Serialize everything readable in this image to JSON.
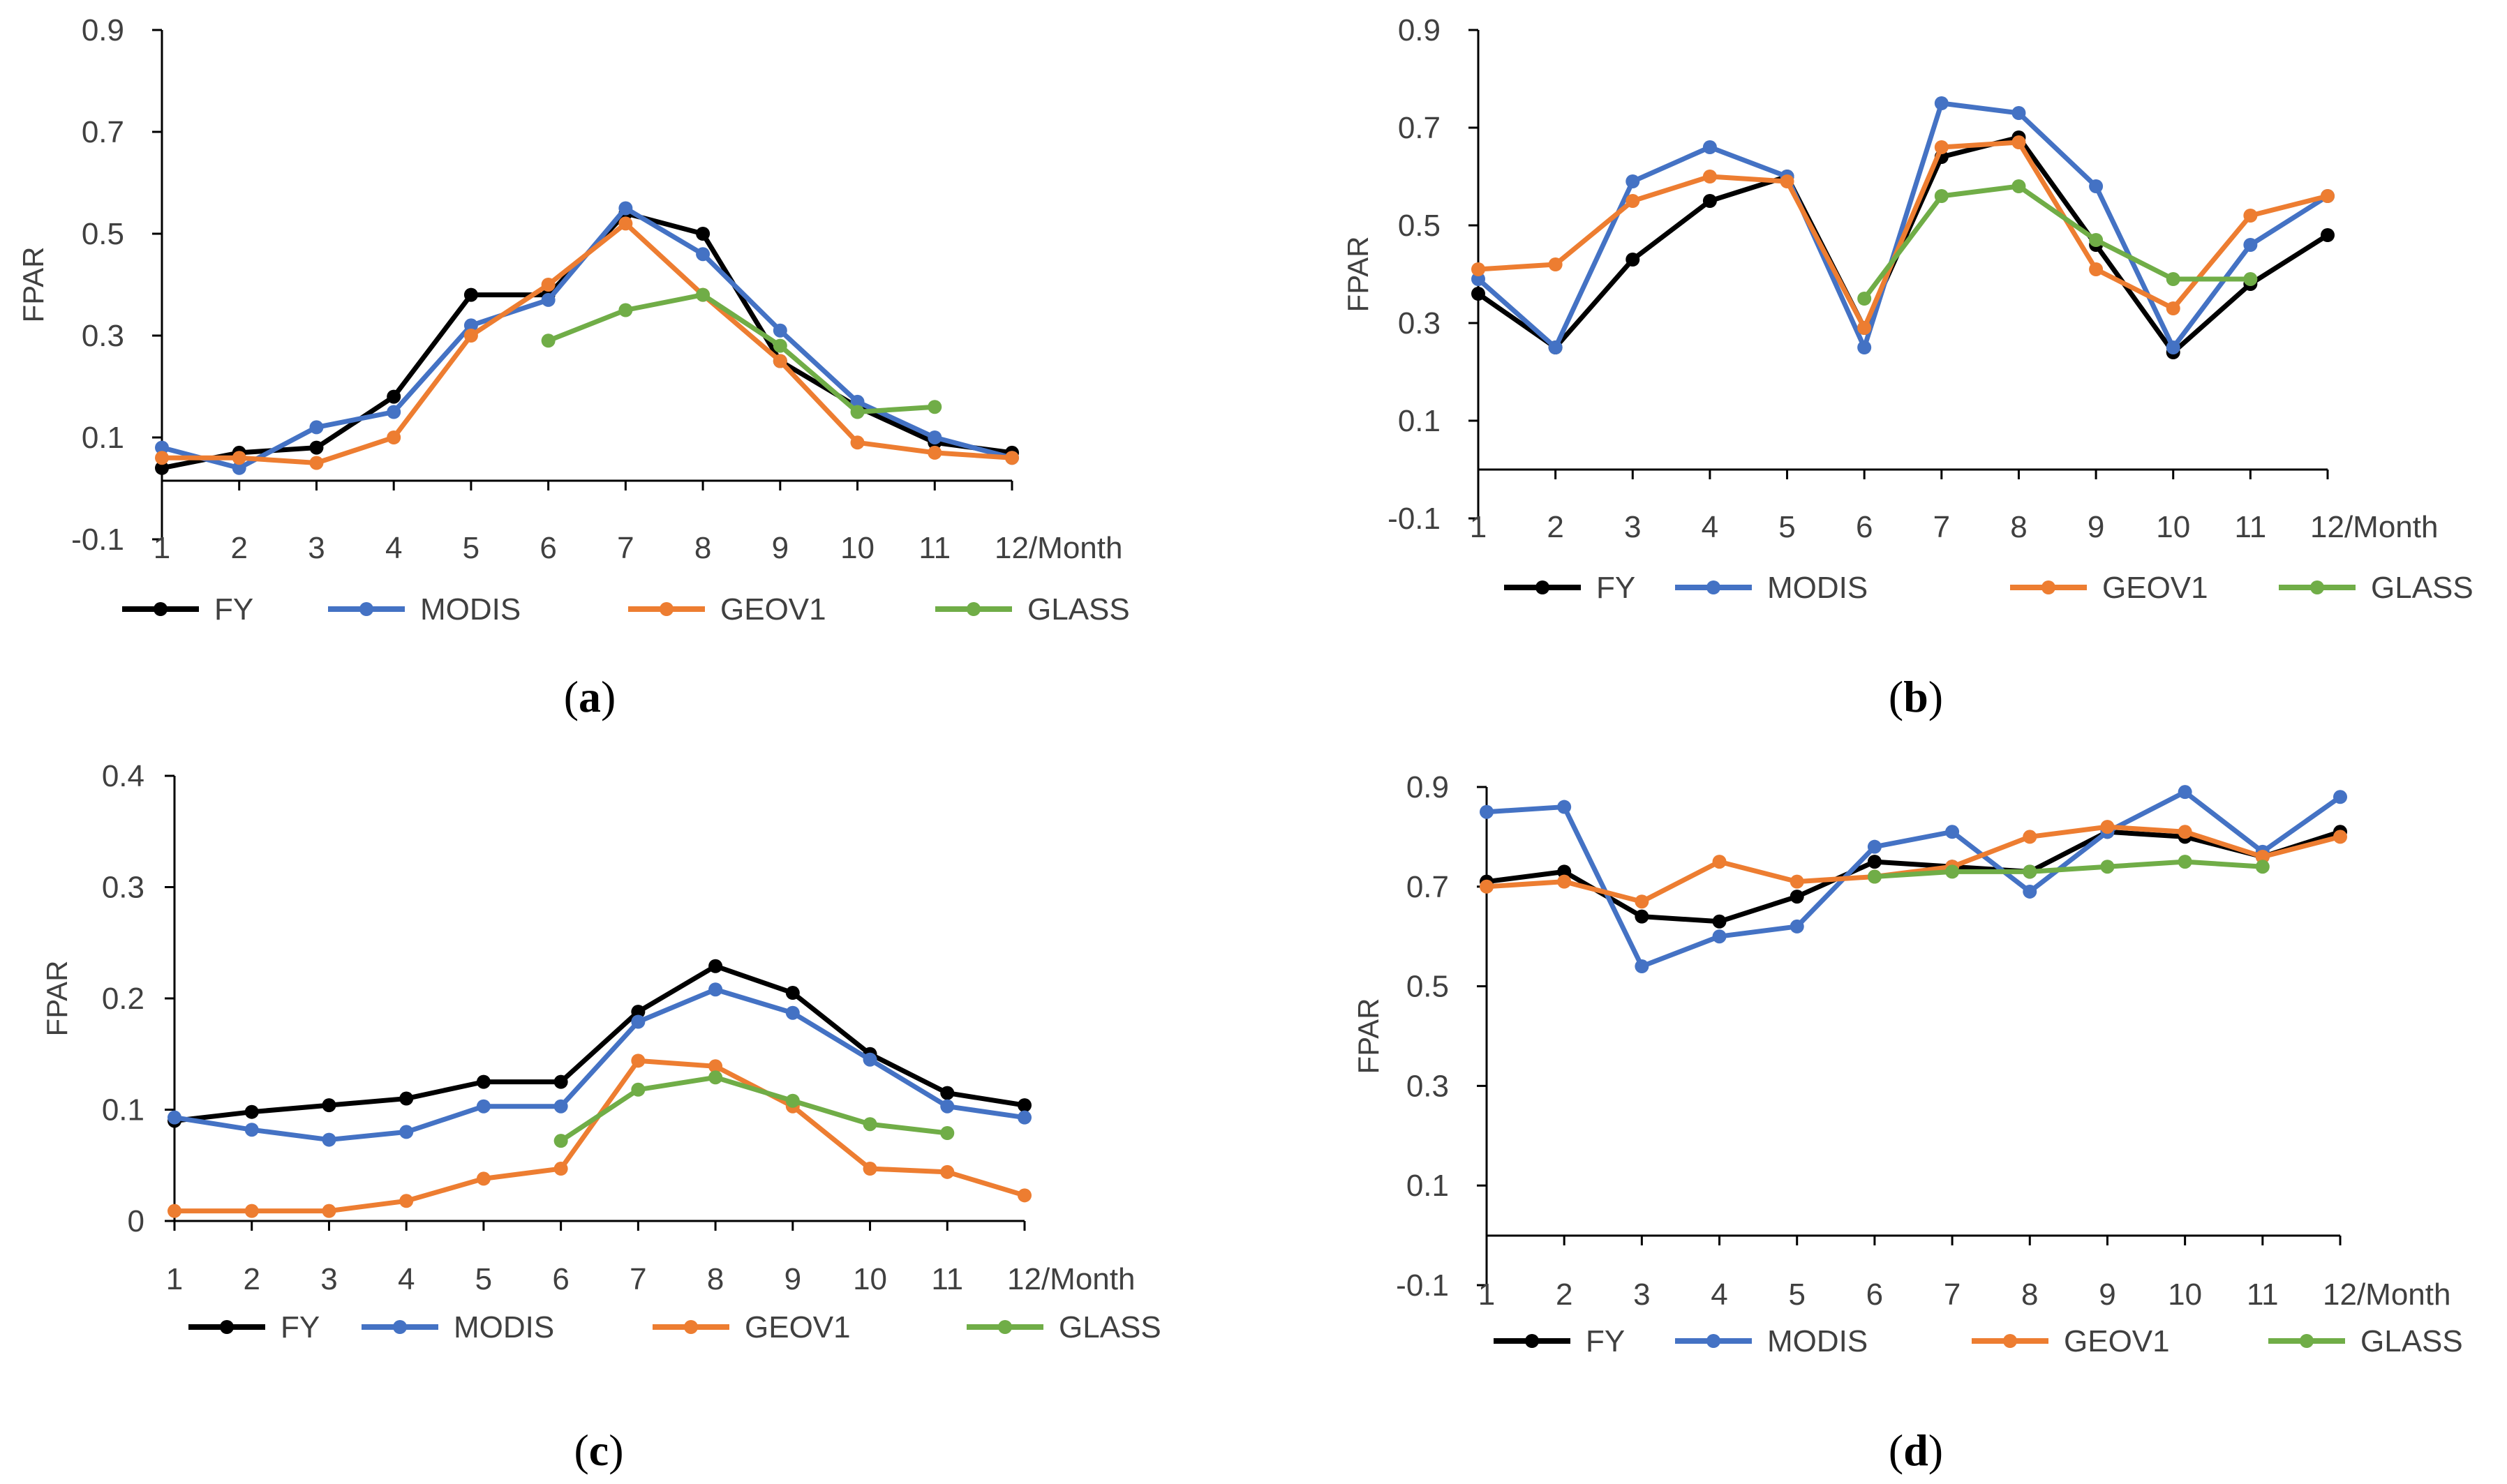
{
  "chart_data": [
    {
      "type": "line",
      "panel": "a",
      "caption": "(a)",
      "caption_letter": "a",
      "xlabel": "/Month",
      "ylabel": "FPAR",
      "ylim": [
        -0.1,
        0.9
      ],
      "yticks": [
        -0.1,
        0.1,
        0.3,
        0.5,
        0.7,
        0.9
      ],
      "ytick_labels": [
        "-0.1",
        "0.1",
        "0.3",
        "0.5",
        "0.7",
        "0.9"
      ],
      "x": [
        1,
        2,
        3,
        4,
        5,
        6,
        7,
        8,
        9,
        10,
        11,
        12
      ],
      "x_tick_labels": [
        "1",
        "2",
        "3",
        "4",
        "5",
        "6",
        "7",
        "8",
        "9",
        "10",
        "11",
        "12/Month"
      ],
      "series": [
        {
          "name": "FY",
          "color": "#000000",
          "x": [
            1,
            2,
            3,
            4,
            5,
            6,
            7,
            8,
            9,
            10,
            11,
            12
          ],
          "values": [
            0.04,
            0.07,
            0.08,
            0.18,
            0.38,
            0.38,
            0.54,
            0.5,
            0.25,
            0.16,
            0.09,
            0.07
          ]
        },
        {
          "name": "MODIS",
          "color": "#4472C4",
          "x": [
            1,
            2,
            3,
            4,
            5,
            6,
            7,
            8,
            9,
            10,
            11,
            12
          ],
          "values": [
            0.08,
            0.04,
            0.12,
            0.15,
            0.32,
            0.37,
            0.55,
            0.46,
            0.31,
            0.17,
            0.1,
            0.06
          ]
        },
        {
          "name": "GEOV1",
          "color": "#ED7D31",
          "x": [
            1,
            2,
            3,
            4,
            5,
            6,
            7,
            8,
            9,
            10,
            11,
            12
          ],
          "values": [
            0.06,
            0.06,
            0.05,
            0.1,
            0.3,
            0.4,
            0.52,
            0.38,
            0.25,
            0.09,
            0.07,
            0.06
          ]
        },
        {
          "name": "GLASS",
          "color": "#70AD47",
          "x": [
            6,
            7,
            8,
            9,
            10,
            11
          ],
          "values": [
            0.29,
            0.35,
            0.38,
            0.28,
            0.15,
            0.16
          ]
        }
      ]
    },
    {
      "type": "line",
      "panel": "b",
      "caption": "(b)",
      "caption_letter": "b",
      "xlabel": "/Month",
      "ylabel": "FPAR",
      "ylim": [
        -0.1,
        0.9
      ],
      "yticks": [
        -0.1,
        0.1,
        0.3,
        0.5,
        0.7,
        0.9
      ],
      "ytick_labels": [
        "-0.1",
        "0.1",
        "0.3",
        "0.5",
        "0.7",
        "0.9"
      ],
      "x": [
        1,
        2,
        3,
        4,
        5,
        6,
        7,
        8,
        9,
        10,
        11,
        12
      ],
      "x_tick_labels": [
        "1",
        "2",
        "3",
        "4",
        "5",
        "6",
        "7",
        "8",
        "9",
        "10",
        "11",
        "12/Month"
      ],
      "series": [
        {
          "name": "FY",
          "color": "#000000",
          "x": [
            1,
            2,
            3,
            4,
            5,
            6,
            7,
            8,
            9,
            10,
            11,
            12
          ],
          "values": [
            0.36,
            0.25,
            0.43,
            0.55,
            0.6,
            0.29,
            0.64,
            0.68,
            0.46,
            0.24,
            0.38,
            0.48
          ]
        },
        {
          "name": "MODIS",
          "color": "#4472C4",
          "x": [
            1,
            2,
            3,
            4,
            5,
            6,
            7,
            8,
            9,
            10,
            11,
            12
          ],
          "values": [
            0.39,
            0.25,
            0.59,
            0.66,
            0.6,
            0.25,
            0.75,
            0.73,
            0.58,
            0.25,
            0.46,
            0.56
          ]
        },
        {
          "name": "GEOV1",
          "color": "#ED7D31",
          "x": [
            1,
            2,
            3,
            4,
            5,
            6,
            7,
            8,
            9,
            10,
            11,
            12
          ],
          "values": [
            0.41,
            0.42,
            0.55,
            0.6,
            0.59,
            0.29,
            0.66,
            0.67,
            0.41,
            0.33,
            0.52,
            0.56
          ]
        },
        {
          "name": "GLASS",
          "color": "#70AD47",
          "x": [
            6,
            7,
            8,
            9,
            10,
            11
          ],
          "values": [
            0.35,
            0.56,
            0.58,
            0.47,
            0.39,
            0.39
          ]
        }
      ]
    },
    {
      "type": "line",
      "panel": "c",
      "caption": "(c)",
      "caption_letter": "c",
      "xlabel": "/Month",
      "ylabel": "FPAR",
      "ylim": [
        0,
        0.4
      ],
      "yticks": [
        0,
        0.1,
        0.2,
        0.3,
        0.4
      ],
      "ytick_labels": [
        "0",
        "0.1",
        "0.2",
        "0.3",
        "0.4"
      ],
      "x": [
        1,
        2,
        3,
        4,
        5,
        6,
        7,
        8,
        9,
        10,
        11,
        12
      ],
      "x_tick_labels": [
        "1",
        "2",
        "3",
        "4",
        "5",
        "6",
        "7",
        "8",
        "9",
        "10",
        "11",
        "12/Month"
      ],
      "series": [
        {
          "name": "FY",
          "color": "#000000",
          "x": [
            1,
            2,
            3,
            4,
            5,
            6,
            7,
            8,
            9,
            10,
            11,
            12
          ],
          "values": [
            0.09,
            0.098,
            0.104,
            0.11,
            0.125,
            0.125,
            0.188,
            0.229,
            0.205,
            0.15,
            0.115,
            0.104
          ]
        },
        {
          "name": "MODIS",
          "color": "#4472C4",
          "x": [
            1,
            2,
            3,
            4,
            5,
            6,
            7,
            8,
            9,
            10,
            11,
            12
          ],
          "values": [
            0.093,
            0.082,
            0.073,
            0.08,
            0.103,
            0.103,
            0.179,
            0.208,
            0.187,
            0.145,
            0.103,
            0.093
          ]
        },
        {
          "name": "GEOV1",
          "color": "#ED7D31",
          "x": [
            1,
            2,
            3,
            4,
            5,
            6,
            7,
            8,
            9,
            10,
            11,
            12
          ],
          "values": [
            0.009,
            0.009,
            0.009,
            0.018,
            0.038,
            0.047,
            0.144,
            0.139,
            0.103,
            0.047,
            0.044,
            0.023
          ]
        },
        {
          "name": "GLASS",
          "color": "#70AD47",
          "x": [
            6,
            7,
            8,
            9,
            10,
            11
          ],
          "values": [
            0.072,
            0.118,
            0.129,
            0.108,
            0.087,
            0.079
          ]
        }
      ]
    },
    {
      "type": "line",
      "panel": "d",
      "caption": "(d)",
      "caption_letter": "d",
      "xlabel": "/Month",
      "ylabel": "FPAR",
      "ylim": [
        -0.1,
        0.9
      ],
      "yticks": [
        -0.1,
        0.1,
        0.3,
        0.5,
        0.7,
        0.9
      ],
      "ytick_labels": [
        "-0.1",
        "0.1",
        "0.3",
        "0.5",
        "0.7",
        "0.9"
      ],
      "x": [
        1,
        2,
        3,
        4,
        5,
        6,
        7,
        8,
        9,
        10,
        11,
        12
      ],
      "x_tick_labels": [
        "1",
        "2",
        "3",
        "4",
        "5",
        "6",
        "7",
        "8",
        "9",
        "10",
        "11",
        "12/Month"
      ],
      "series": [
        {
          "name": "FY",
          "color": "#000000",
          "x": [
            1,
            2,
            3,
            4,
            5,
            6,
            7,
            8,
            9,
            10,
            11,
            12
          ],
          "values": [
            0.71,
            0.73,
            0.64,
            0.63,
            0.68,
            0.75,
            0.74,
            0.73,
            0.81,
            0.8,
            0.76,
            0.81
          ]
        },
        {
          "name": "MODIS",
          "color": "#4472C4",
          "x": [
            1,
            2,
            3,
            4,
            5,
            6,
            7,
            8,
            9,
            10,
            11,
            12
          ],
          "values": [
            0.85,
            0.86,
            0.54,
            0.6,
            0.62,
            0.78,
            0.81,
            0.69,
            0.81,
            0.89,
            0.77,
            0.88
          ]
        },
        {
          "name": "GEOV1",
          "color": "#ED7D31",
          "x": [
            1,
            2,
            3,
            4,
            5,
            6,
            7,
            8,
            9,
            10,
            11,
            12
          ],
          "values": [
            0.7,
            0.71,
            0.67,
            0.75,
            0.71,
            0.72,
            0.74,
            0.8,
            0.82,
            0.81,
            0.76,
            0.8
          ]
        },
        {
          "name": "GLASS",
          "color": "#70AD47",
          "x": [
            6,
            7,
            8,
            9,
            10,
            11
          ],
          "values": [
            0.72,
            0.73,
            0.73,
            0.74,
            0.75,
            0.74
          ]
        }
      ]
    }
  ]
}
